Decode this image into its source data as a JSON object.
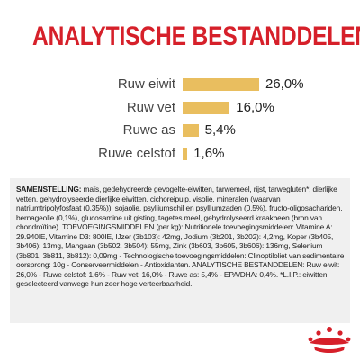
{
  "title": "ANALYTISCHE BESTANDDELEN",
  "chart_data": {
    "type": "bar",
    "orientation": "horizontal",
    "categories": [
      "Ruw eiwit",
      "Ruw vet",
      "Ruwe as",
      "Ruwe celstof"
    ],
    "values": [
      26.0,
      16.0,
      5.4,
      1.6
    ],
    "value_labels": [
      "26,0%",
      "16,0%",
      "5,4%",
      "1,6%"
    ],
    "title": "",
    "xlabel": "",
    "ylabel": "",
    "xlim": [
      0,
      26
    ],
    "grid": false,
    "bar_color": "#e9be5f"
  },
  "composition": {
    "heading": "SAMENSTELLING:",
    "text": " maïs, gedehydreerde gevogelte-eiwitten, tarwemeel, rijst, tarwegluten*, dierlijke vetten, gehydrolyseerde dierlijke eiwitten, cichoreipulp, visolie, mineralen (waarvan natriumtripolyfosfaat (0,35%)), sojaolie, psylliumschil en psylliumzaden (0,5%), fructo-oligosachariden, bernageolie (0,1%), glucosamine uit gisting, tagetes meel, gehydrolyseerd kraakbeen (bron van chondroïtine). TOEVOEGINGSMIDDELEN (per kg): Nutritionele toevoegingsmiddelen: Vitamine A: 29.940IE, Vitamine D3: 800IE, IJzer (3b103): 42mg, Jodium (3b201, 3b202): 4,2mg, Koper (3b405, 3b406): 13mg, Mangaan (3b502, 3b504): 55mg, Zink (3b603, 3b605, 3b606): 136mg, Selenium (3b801, 3b811, 3b812): 0,09mg - Technologische toevoegingsmiddelen: Clinoptiloliet van sedimentaire oorsprong: 10g - Conserveermiddelen - Antioxidanten. ANALYTISCHE BESTANDDELEN: Ruw eiwit: 26,0% - Ruwe celstof: 1,6% - Ruw vet: 16,0% - Ruwe as: 5,4% - EPA/DHA: 0,4%. *L.I.P.: eiwitten geselecteerd vanwege hun zeer hoge verteerbaarheid."
  },
  "brand": {
    "logo_icon": "royal-canin-crown-icon",
    "color": "#d6202a"
  }
}
